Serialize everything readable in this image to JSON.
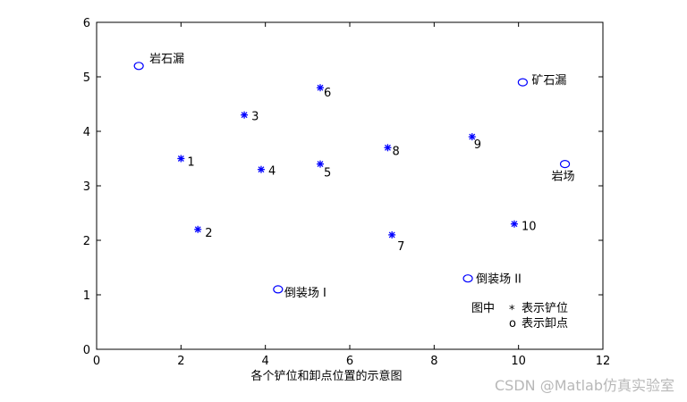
{
  "chart_data": {
    "type": "scatter",
    "title": "",
    "xlabel": "各个铲位和卸点位置的示意图",
    "ylabel": "",
    "xlim": [
      0,
      12
    ],
    "ylim": [
      0,
      6
    ],
    "x_ticks": [
      0,
      2,
      4,
      6,
      8,
      10,
      12
    ],
    "y_ticks": [
      0,
      1,
      2,
      3,
      4,
      5,
      6
    ],
    "grid": false,
    "marker_color": "#0000ff",
    "series": [
      {
        "marker": "*",
        "points": [
          {
            "x": 2.0,
            "y": 3.5,
            "label": "1"
          },
          {
            "x": 2.4,
            "y": 2.2,
            "label": "2"
          },
          {
            "x": 3.5,
            "y": 4.3,
            "label": "3"
          },
          {
            "x": 3.9,
            "y": 3.3,
            "label": "4"
          },
          {
            "x": 5.3,
            "y": 3.4,
            "label": "5"
          },
          {
            "x": 5.3,
            "y": 4.8,
            "label": "6"
          },
          {
            "x": 7.0,
            "y": 2.1,
            "label": "7"
          },
          {
            "x": 6.9,
            "y": 3.7,
            "label": "8"
          },
          {
            "x": 8.9,
            "y": 3.9,
            "label": "9"
          },
          {
            "x": 9.9,
            "y": 2.3,
            "label": "10"
          }
        ]
      },
      {
        "marker": "o",
        "points": [
          {
            "x": 1.0,
            "y": 5.2,
            "label": "岩石漏"
          },
          {
            "x": 10.1,
            "y": 4.9,
            "label": "矿石漏"
          },
          {
            "x": 11.1,
            "y": 3.4,
            "label": "岩场"
          },
          {
            "x": 4.3,
            "y": 1.1,
            "label": "倒装场 I"
          },
          {
            "x": 8.8,
            "y": 1.3,
            "label": "倒装场 II"
          }
        ]
      }
    ],
    "legend_note": {
      "line1_prefix": "图中",
      "line1_marker": "*",
      "line1_text": "表示铲位",
      "line2_marker": "o",
      "line2_text": "表示卸点"
    }
  },
  "watermark": "CSDN @Matlab仿真实验室"
}
